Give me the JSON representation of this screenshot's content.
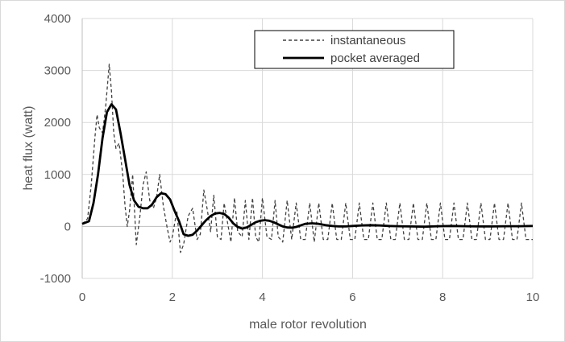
{
  "chart_data": {
    "type": "line",
    "title": "",
    "xlabel": "male rotor revolution",
    "ylabel": "heat flux  (watt)",
    "xlim": [
      0,
      10
    ],
    "ylim": [
      -1000,
      4000
    ],
    "x_ticks": [
      0,
      2,
      4,
      6,
      8,
      10
    ],
    "y_ticks": [
      -1000,
      0,
      1000,
      2000,
      3000,
      4000
    ],
    "grid": true,
    "legend_position": "top-right",
    "series": [
      {
        "name": "instantaneous",
        "style": "dashed",
        "color": "#404040",
        "x": [
          0.0,
          0.12,
          0.2,
          0.28,
          0.33,
          0.38,
          0.45,
          0.52,
          0.6,
          0.65,
          0.7,
          0.75,
          0.82,
          0.9,
          0.95,
          1.0,
          1.05,
          1.12,
          1.2,
          1.28,
          1.35,
          1.42,
          1.5,
          1.58,
          1.65,
          1.72,
          1.8,
          1.88,
          1.95,
          2.0,
          2.1,
          2.18,
          2.25,
          2.35,
          2.45,
          2.55,
          2.62,
          2.7,
          2.78,
          2.85,
          2.92,
          3.0,
          3.08,
          3.15,
          3.22,
          3.3,
          3.38,
          3.45,
          3.55,
          3.62,
          3.7,
          3.78,
          3.85,
          3.92,
          4.0,
          4.1,
          4.2,
          4.28,
          4.35,
          4.45,
          4.55,
          4.65,
          4.75,
          4.85,
          4.95,
          5.05,
          5.15,
          5.25,
          5.35,
          5.45,
          5.55,
          5.65,
          5.75,
          5.85,
          5.95,
          6.05,
          6.15,
          6.25,
          6.35,
          6.45,
          6.55,
          6.65,
          6.75,
          6.85,
          6.95,
          7.05,
          7.15,
          7.25,
          7.35,
          7.45,
          7.55,
          7.65,
          7.75,
          7.85,
          7.95,
          8.05,
          8.15,
          8.25,
          8.35,
          8.45,
          8.55,
          8.65,
          8.75,
          8.85,
          8.95,
          9.05,
          9.15,
          9.25,
          9.35,
          9.45,
          9.55,
          9.65,
          9.75,
          9.85,
          9.95,
          10.0
        ],
        "y": [
          50,
          150,
          800,
          1700,
          2150,
          1900,
          1800,
          2300,
          3120,
          2600,
          1800,
          1500,
          1600,
          1000,
          400,
          0,
          300,
          1000,
          -350,
          200,
          800,
          1050,
          500,
          350,
          550,
          1000,
          400,
          0,
          -300,
          -200,
          300,
          -500,
          -350,
          200,
          350,
          -250,
          -150,
          700,
          300,
          -100,
          600,
          -200,
          -250,
          450,
          100,
          -300,
          550,
          -100,
          -200,
          500,
          -250,
          550,
          -200,
          -300,
          550,
          -200,
          -250,
          500,
          -200,
          -300,
          500,
          -250,
          450,
          -250,
          -250,
          450,
          -300,
          450,
          -250,
          -250,
          450,
          -250,
          -250,
          450,
          -250,
          -250,
          450,
          -250,
          -250,
          450,
          -250,
          -250,
          450,
          -250,
          -250,
          450,
          -250,
          -250,
          450,
          -250,
          -250,
          450,
          -250,
          -250,
          450,
          -250,
          -250,
          450,
          -250,
          -250,
          450,
          -250,
          -250,
          450,
          -250,
          -250,
          450,
          -250,
          -250,
          450,
          -250,
          -250,
          450,
          -250,
          -250,
          -250
        ]
      },
      {
        "name": "pocket averaged",
        "style": "solid",
        "color": "#000000",
        "x": [
          0.0,
          0.15,
          0.25,
          0.35,
          0.45,
          0.55,
          0.65,
          0.75,
          0.85,
          0.95,
          1.05,
          1.15,
          1.25,
          1.35,
          1.45,
          1.55,
          1.65,
          1.75,
          1.85,
          1.95,
          2.05,
          2.15,
          2.25,
          2.35,
          2.45,
          2.55,
          2.65,
          2.75,
          2.85,
          2.95,
          3.05,
          3.15,
          3.25,
          3.35,
          3.45,
          3.55,
          3.65,
          3.75,
          3.85,
          3.95,
          4.05,
          4.15,
          4.25,
          4.35,
          4.45,
          4.55,
          4.65,
          4.75,
          4.85,
          4.95,
          5.1,
          5.25,
          5.4,
          5.55,
          5.7,
          5.85,
          6.0,
          6.2,
          6.4,
          6.6,
          6.8,
          7.0,
          7.3,
          7.6,
          7.9,
          8.2,
          8.5,
          8.8,
          9.1,
          9.4,
          9.7,
          10.0
        ],
        "y": [
          50,
          100,
          450,
          1000,
          1700,
          2200,
          2350,
          2250,
          1800,
          1300,
          800,
          500,
          380,
          350,
          350,
          420,
          560,
          640,
          620,
          520,
          300,
          100,
          -150,
          -180,
          -160,
          -80,
          20,
          120,
          200,
          250,
          260,
          240,
          170,
          60,
          -10,
          -40,
          -20,
          30,
          80,
          110,
          120,
          110,
          80,
          40,
          0,
          -20,
          -25,
          -10,
          20,
          50,
          60,
          50,
          25,
          10,
          0,
          0,
          10,
          20,
          25,
          20,
          10,
          5,
          0,
          -5,
          5,
          10,
          5,
          0,
          0,
          5,
          5,
          10
        ]
      }
    ]
  }
}
